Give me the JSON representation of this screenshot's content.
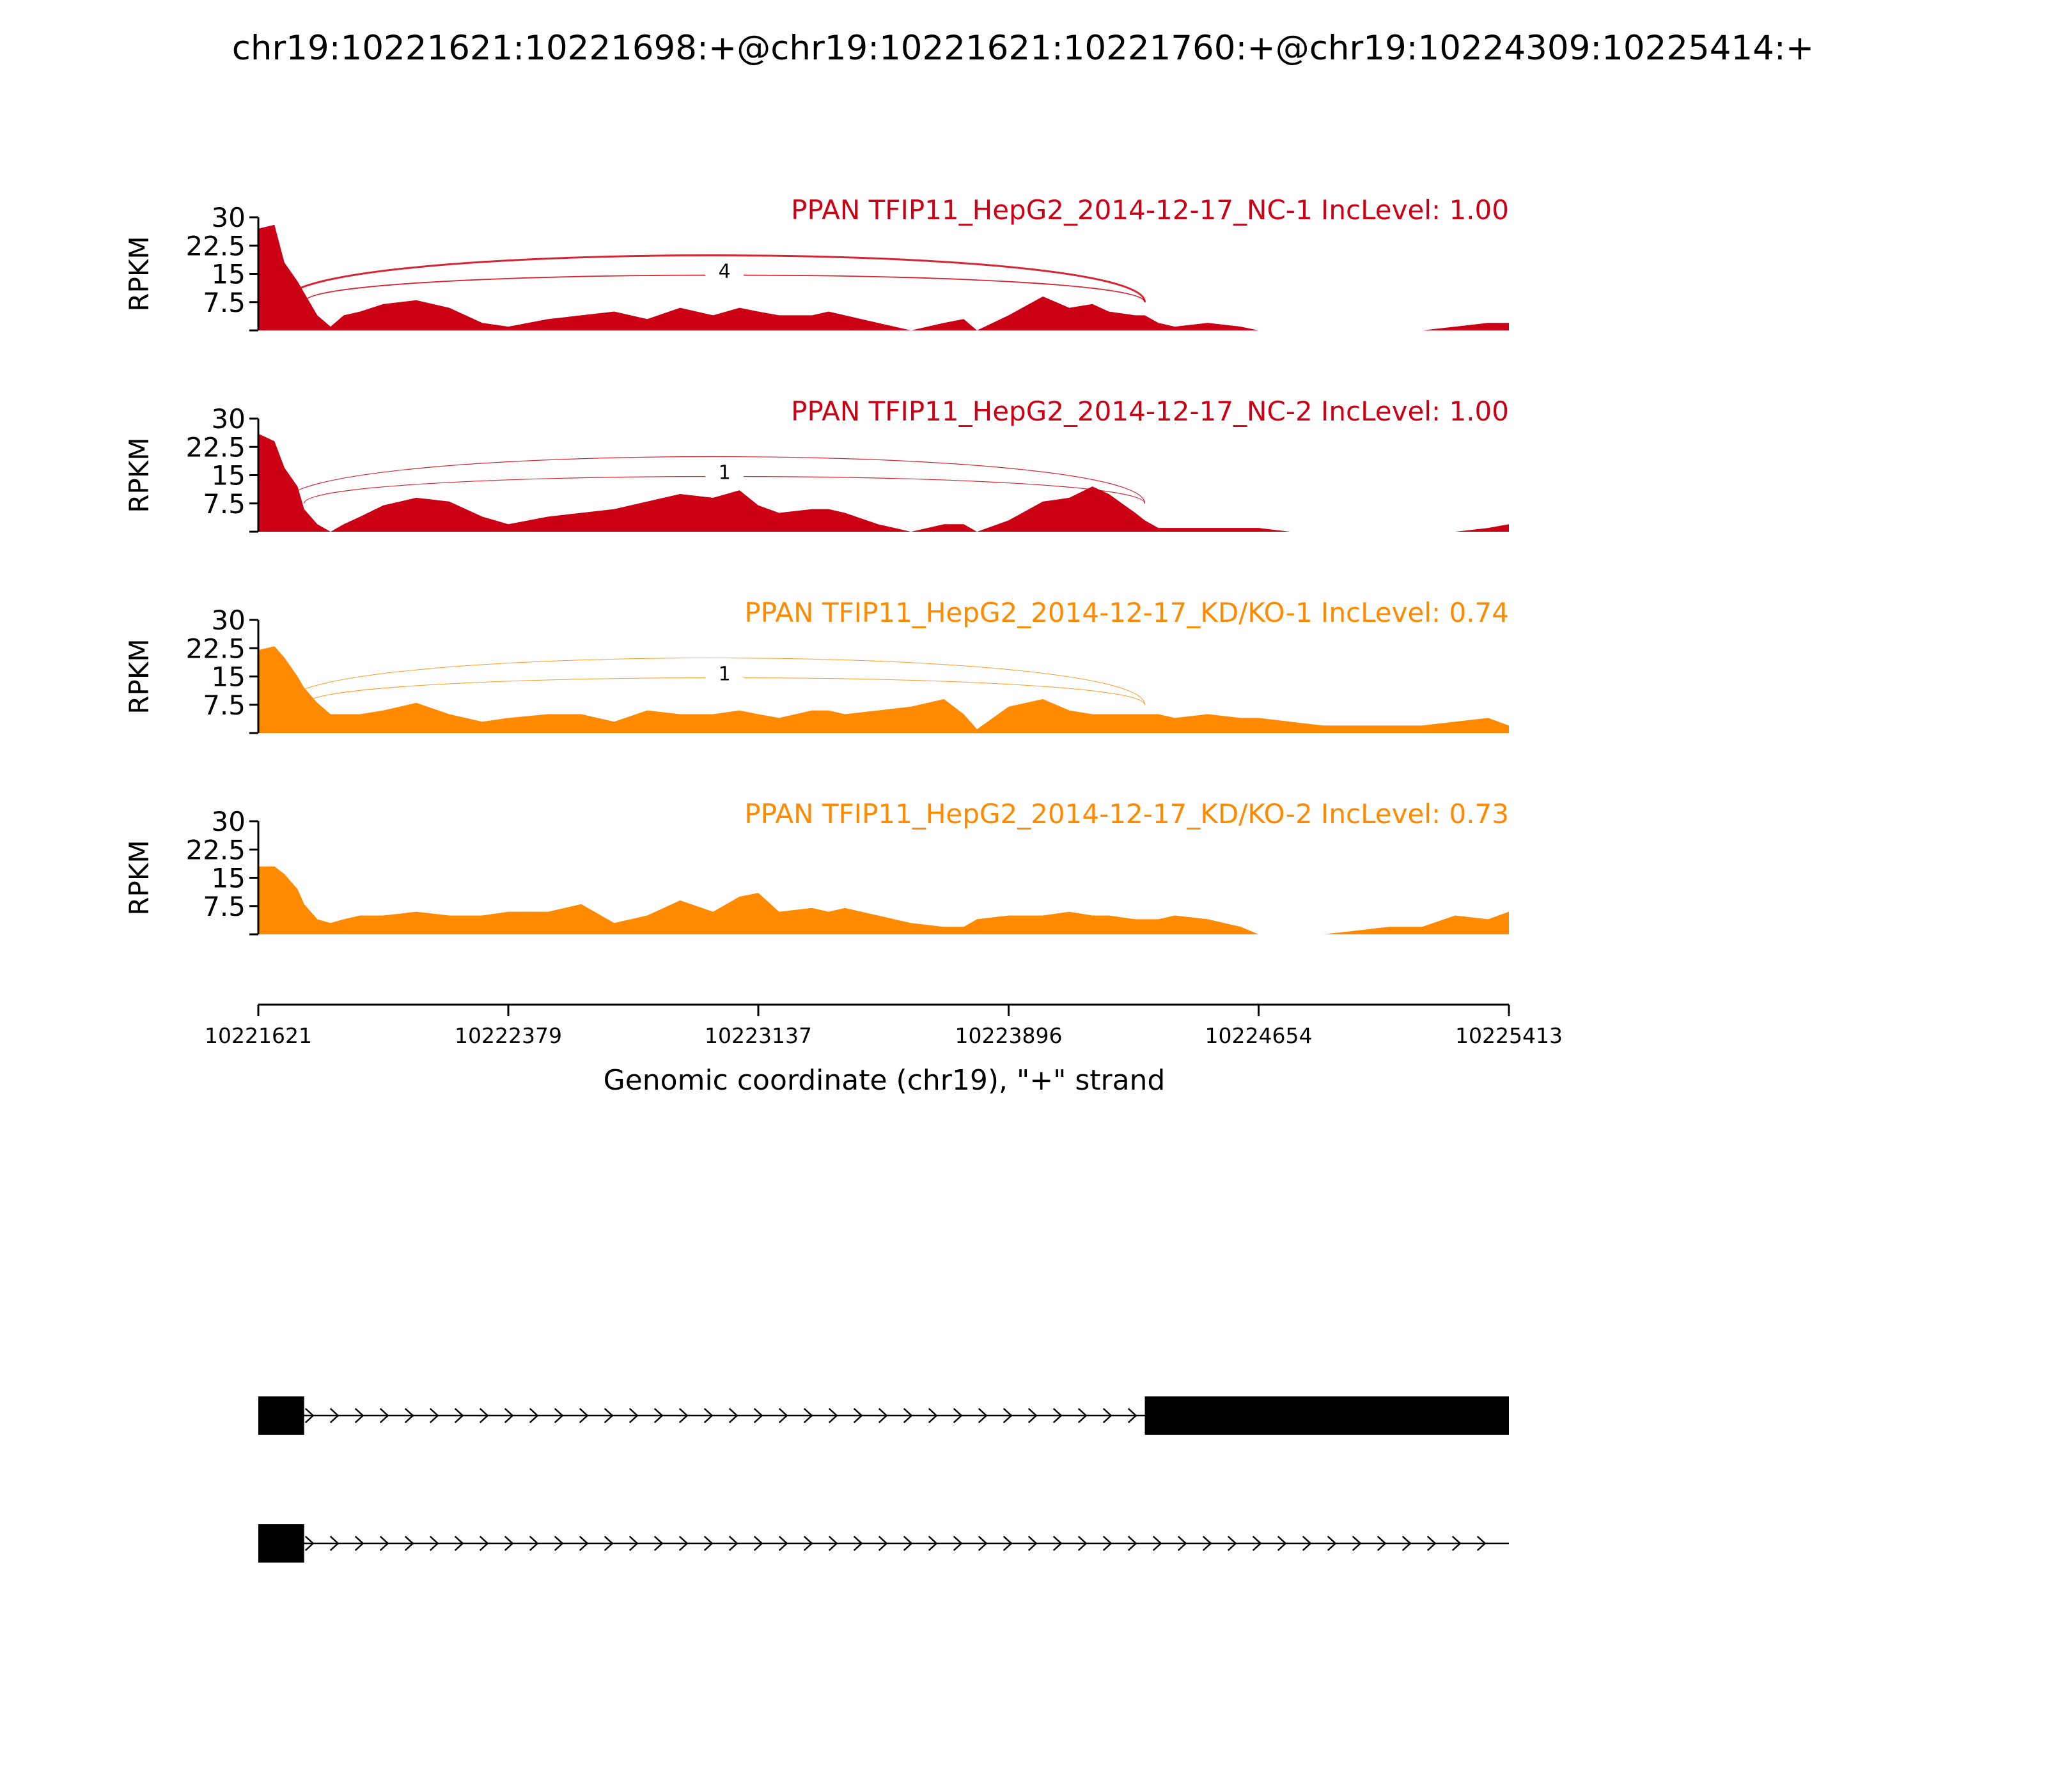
{
  "title": "chr19:10221621:10221698:+@chr19:10221621:10221760:+@chr19:10224309:10225414:+",
  "y_axis_label": "RPKM",
  "x_axis_label": "Genomic coordinate (chr19), \"+\" strand",
  "colors": {
    "nc": "#cc0014",
    "kd": "#ff8a00",
    "black": "#000000"
  },
  "chart_data": {
    "type": "area",
    "title": "chr19:10221621:10221698:+@chr19:10221621:10221760:+@chr19:10224309:10225414:+",
    "xlabel": "Genomic coordinate (chr19), \"+\" strand",
    "ylabel": "RPKM",
    "xlim": [
      10221621,
      10225413
    ],
    "ylim": [
      0,
      30
    ],
    "yticks": [
      "7.5",
      "15",
      "22.5",
      "30"
    ],
    "xticks": [
      "10221621",
      "10222379",
      "10223137",
      "10223896",
      "10224654",
      "10225413"
    ],
    "positions": [
      10221621,
      10221670,
      10221700,
      10221740,
      10221760,
      10221800,
      10221840,
      10221880,
      10221930,
      10222000,
      10222100,
      10222200,
      10222300,
      10222379,
      10222500,
      10222600,
      10222700,
      10222800,
      10222900,
      10223000,
      10223080,
      10223137,
      10223200,
      10223300,
      10223350,
      10223400,
      10223500,
      10223600,
      10223700,
      10223760,
      10223800,
      10223896,
      10224000,
      10224080,
      10224150,
      10224200,
      10224280,
      10224309,
      10224350,
      10224400,
      10224500,
      10224600,
      10224654,
      10224750,
      10224850,
      10224950,
      10225050,
      10225150,
      10225250,
      10225350,
      10225413
    ],
    "series": [
      {
        "name": "PPAN TFIP11_HepG2_2014-12-17_NC-1",
        "inc_label": "IncLevel: 1.00",
        "group": "nc",
        "values": [
          27,
          28,
          18,
          13,
          10,
          4,
          1,
          4,
          5,
          7,
          8,
          6,
          2,
          1,
          3,
          4,
          5,
          3,
          6,
          4,
          6,
          5,
          4,
          4,
          5,
          4,
          2,
          0,
          2,
          3,
          0,
          4,
          9,
          6,
          7,
          5,
          4,
          4,
          2,
          1,
          2,
          1,
          0,
          0,
          0,
          0,
          0,
          0,
          1,
          2,
          2
        ],
        "junctions": [
          {
            "start": 10221698,
            "end": 10224309,
            "count": "",
            "weight": 1.5
          },
          {
            "start": 10221760,
            "end": 10224309,
            "count": "4",
            "weight": 0.9
          }
        ]
      },
      {
        "name": "PPAN TFIP11_HepG2_2014-12-17_NC-2",
        "inc_label": "IncLevel: 1.00",
        "group": "nc",
        "values": [
          26,
          24,
          17,
          12,
          6,
          2,
          0,
          2,
          4,
          7,
          9,
          8,
          4,
          2,
          4,
          5,
          6,
          8,
          10,
          9,
          11,
          7,
          5,
          6,
          6,
          5,
          2,
          0,
          2,
          2,
          0,
          3,
          8,
          9,
          12,
          10,
          5,
          3,
          1,
          1,
          1,
          1,
          1,
          0,
          0,
          0,
          0,
          0,
          0,
          1,
          2
        ],
        "junctions": [
          {
            "start": 10221698,
            "end": 10224309,
            "count": "",
            "weight": 0.6
          },
          {
            "start": 10221760,
            "end": 10224309,
            "count": "1",
            "weight": 0.6
          }
        ]
      },
      {
        "name": "PPAN TFIP11_HepG2_2014-12-17_KD/KO-1",
        "inc_label": "IncLevel: 0.74",
        "group": "kd",
        "values": [
          22,
          23,
          20,
          15,
          12,
          8,
          5,
          5,
          5,
          6,
          8,
          5,
          3,
          4,
          5,
          5,
          3,
          6,
          5,
          5,
          6,
          5,
          4,
          6,
          6,
          5,
          6,
          7,
          9,
          5,
          1,
          7,
          9,
          6,
          5,
          5,
          5,
          5,
          5,
          4,
          5,
          4,
          4,
          3,
          2,
          2,
          2,
          2,
          3,
          4,
          2
        ],
        "junctions": [
          {
            "start": 10221698,
            "end": 10224309,
            "count": "",
            "weight": 0.5
          },
          {
            "start": 10221760,
            "end": 10224309,
            "count": "1",
            "weight": 0.5
          }
        ]
      },
      {
        "name": "PPAN TFIP11_HepG2_2014-12-17_KD/KO-2",
        "inc_label": "IncLevel: 0.73",
        "group": "kd",
        "values": [
          18,
          18,
          16,
          12,
          8,
          4,
          3,
          4,
          5,
          5,
          6,
          5,
          5,
          6,
          6,
          8,
          3,
          5,
          9,
          6,
          10,
          11,
          6,
          7,
          6,
          7,
          5,
          3,
          2,
          2,
          4,
          5,
          5,
          6,
          5,
          5,
          4,
          4,
          4,
          5,
          4,
          2,
          0,
          0,
          0,
          1,
          2,
          2,
          5,
          4,
          6
        ],
        "junctions": []
      }
    ],
    "isoforms": [
      {
        "exons": [
          [
            10221621,
            10221760
          ],
          [
            10224309,
            10225414
          ]
        ]
      },
      {
        "exons": [
          [
            10221621,
            10221760
          ]
        ]
      }
    ]
  }
}
